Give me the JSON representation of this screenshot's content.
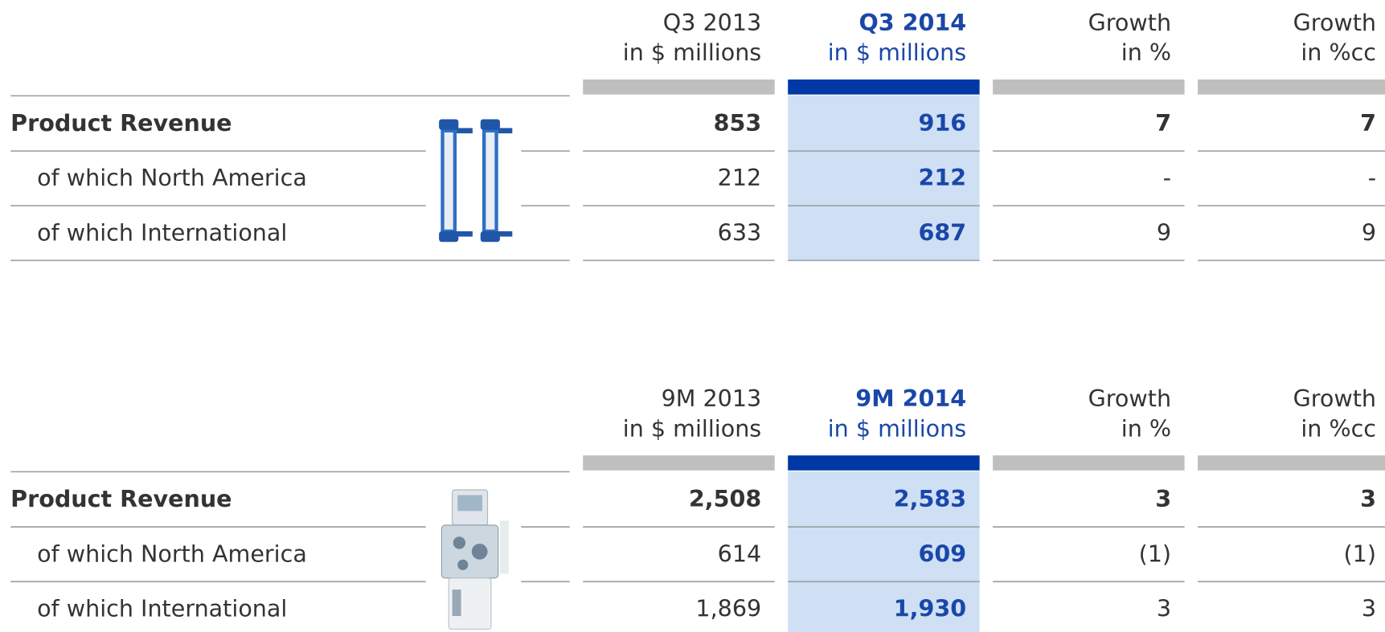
{
  "tables": [
    {
      "header": {
        "columns": [
          {
            "period": "Q3 2013",
            "unit": "in $ millions"
          },
          {
            "period": "Q3 2014",
            "unit": "in $ millions"
          },
          {
            "period": "Growth",
            "unit": "in %"
          },
          {
            "period": "Growth",
            "unit": "in %cc"
          }
        ]
      },
      "rows": [
        {
          "label": "Product Revenue",
          "values": [
            "853",
            "916",
            "7",
            "7"
          ]
        },
        {
          "label": "of which North America",
          "values": [
            "212",
            "212",
            "-",
            "-"
          ]
        },
        {
          "label": "of which International",
          "values": [
            "633",
            "687",
            "9",
            "9"
          ]
        }
      ]
    },
    {
      "header": {
        "columns": [
          {
            "period": "9M 2013",
            "unit": "in $ millions"
          },
          {
            "period": "9M 2014",
            "unit": "in $ millions"
          },
          {
            "period": "Growth",
            "unit": "in %"
          },
          {
            "period": "Growth",
            "unit": "in %cc"
          }
        ]
      },
      "rows": [
        {
          "label": "Product Revenue",
          "values": [
            "2,508",
            "2,583",
            "3",
            "3"
          ]
        },
        {
          "label": "of which North America",
          "values": [
            "614",
            "609",
            "(1)",
            "(1)"
          ]
        },
        {
          "label": "of which International",
          "values": [
            "1,869",
            "1,930",
            "3",
            "3"
          ]
        }
      ]
    }
  ]
}
